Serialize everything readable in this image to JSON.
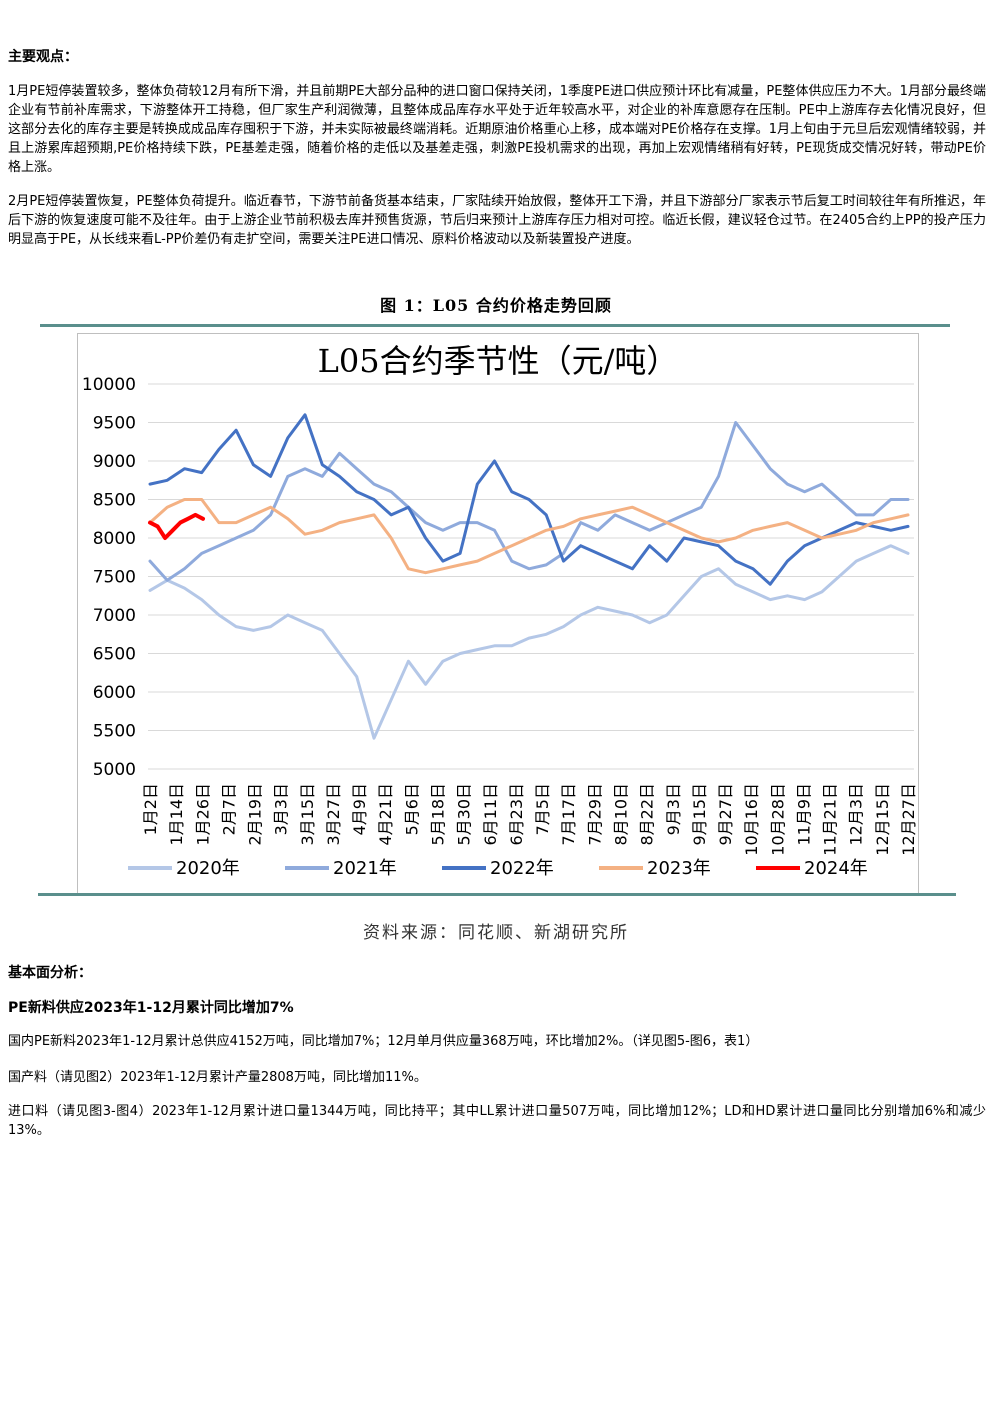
{
  "heading_views": "主要观点：",
  "para1": "1月PE短停装置较多，整体负荷较12月有所下滑，并且前期PE大部分品种的进口窗口保持关闭，1季度PE进口供应预计环比有减量，PE整体供应压力不大。1月部分最终端企业有节前补库需求，下游整体开工持稳，但厂家生产利润微薄，且整体成品库存水平处于近年较高水平，对企业的补库意愿存在压制。PE中上游库存去化情况良好，但这部分去化的库存主要是转换成成品库存囤积于下游，并未实际被最终端消耗。近期原油价格重心上移，成本端对PE价格存在支撑。1月上旬由于元旦后宏观情绪较弱，并且上游累库超预期,PE价格持续下跌，PE基差走强，随着价格的走低以及基差走强，刺激PE投机需求的出现，再加上宏观情绪稍有好转，PE现货成交情况好转，带动PE价格上涨。",
  "para2": "2月PE短停装置恢复，PE整体负荷提升。临近春节，下游节前备货基本结束，厂家陆续开始放假，整体开工下滑，并且下游部分厂家表示节后复工时间较往年有所推迟，年后下游的恢复速度可能不及往年。由于上游企业节前积极去库并预售货源，节后归来预计上游库存压力相对可控。临近长假，建议轻仓过节。在2405合约上PP的投产压力明显高于PE，从长线来看L-PP价差仍有走扩空间，需要关注PE进口情况、原料价格波动以及新装置投产进度。",
  "figure_title": "图 1：L05 合约价格走势回顾",
  "source": "资料来源：同花顺、新湖研究所",
  "heading_fundamental": "基本面分析：",
  "heading_supply": "PE新料供应2023年1-12月累计同比增加7%",
  "para3": "国内PE新料2023年1-12月累计总供应4152万吨，同比增加7%；12月单月供应量368万吨，环比增加2%。（详见图5-图6，表1）",
  "para4": "国产料（请见图2）2023年1-12月累计产量2808万吨，同比增加11%。",
  "para5": "进口料（请见图3-图4）2023年1-12月累计进口量1344万吨，同比持平；其中LL累计进口量507万吨，同比增加12%；LD和HD累计进口量同比分别增加6%和减少13%。",
  "chart_data": {
    "type": "line",
    "title": "L05合约季节性（元/吨）",
    "ylim": [
      5000,
      10000
    ],
    "yticks": [
      "10000",
      "9500",
      "9000",
      "8500",
      "8000",
      "7500",
      "7000",
      "6500",
      "6000",
      "5500",
      "5000"
    ],
    "x_ticks": [
      "1月2日",
      "1月14日",
      "1月26日",
      "2月7日",
      "2月19日",
      "3月3日",
      "3月15日",
      "3月27日",
      "4月9日",
      "4月21日",
      "5月6日",
      "5月18日",
      "5月30日",
      "6月11日",
      "6月23日",
      "7月5日",
      "7月17日",
      "7月29日",
      "8月10日",
      "8月22日",
      "9月3日",
      "9月15日",
      "9月27日",
      "10月16日",
      "10月28日",
      "11月9日",
      "11月21日",
      "12月3日",
      "12月15日",
      "12月27日"
    ],
    "grid": true,
    "legend": "bottom",
    "series": [
      {
        "name": "2020年",
        "color": "#b4c7e7",
        "values": [
          7320,
          7450,
          7350,
          7200,
          7000,
          6850,
          6800,
          6850,
          7000,
          6900,
          6800,
          6500,
          6200,
          5400,
          5900,
          6400,
          6100,
          6400,
          6500,
          6550,
          6600,
          6600,
          6700,
          6750,
          6850,
          7000,
          7100,
          7050,
          7000,
          6900,
          7000,
          7250,
          7500,
          7600,
          7400,
          7300,
          7200,
          7250,
          7200,
          7300,
          7500,
          7700,
          7800,
          7900,
          7800
        ]
      },
      {
        "name": "2021年",
        "color": "#8faadc",
        "values": [
          7700,
          7450,
          7600,
          7800,
          7900,
          8000,
          8100,
          8300,
          8800,
          8900,
          8800,
          9100,
          8900,
          8700,
          8600,
          8400,
          8200,
          8100,
          8200,
          8200,
          8100,
          7700,
          7600,
          7650,
          7800,
          8200,
          8100,
          8300,
          8200,
          8100,
          8200,
          8300,
          8400,
          8800,
          9500,
          9200,
          8900,
          8700,
          8600,
          8700,
          8500,
          8300,
          8300,
          8500,
          8500
        ]
      },
      {
        "name": "2022年",
        "color": "#4472c4",
        "values": [
          8700,
          8750,
          8900,
          8850,
          9150,
          9400,
          8950,
          8800,
          9300,
          9600,
          8950,
          8800,
          8600,
          8500,
          8300,
          8400,
          8000,
          7700,
          7800,
          8700,
          9000,
          8600,
          8500,
          8300,
          7700,
          7900,
          7800,
          7700,
          7600,
          7900,
          7700,
          8000,
          7950,
          7900,
          7700,
          7600,
          7400,
          7700,
          7900,
          8000,
          8100,
          8200,
          8150,
          8100,
          8150
        ]
      },
      {
        "name": "2023年",
        "color": "#f4b183",
        "values": [
          8200,
          8400,
          8500,
          8500,
          8200,
          8200,
          8300,
          8400,
          8250,
          8050,
          8100,
          8200,
          8250,
          8300,
          8000,
          7600,
          7550,
          7600,
          7650,
          7700,
          7800,
          7900,
          8000,
          8100,
          8150,
          8250,
          8300,
          8350,
          8400,
          8300,
          8200,
          8100,
          8000,
          7950,
          8000,
          8100,
          8150,
          8200,
          8100,
          8000,
          8050,
          8100,
          8200,
          8250,
          8300
        ]
      },
      {
        "name": "2024年",
        "color": "#ff0000",
        "values": [
          8200,
          8150,
          8000,
          8100,
          8200,
          8250,
          8300,
          8250
        ]
      }
    ]
  }
}
